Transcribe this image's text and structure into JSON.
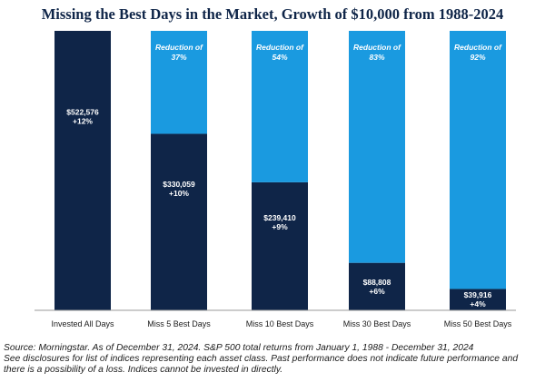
{
  "chart_data": {
    "type": "bar",
    "stacked": true,
    "title": "Missing the Best Days in the Market, Growth of $10,000 from 1988-2024",
    "categories": [
      "Invested All Days",
      "Miss 5 Best Days",
      "Miss 10 Best Days",
      "Miss 30 Best Days",
      "Miss 50 Best Days"
    ],
    "total": 522576,
    "series": [
      {
        "values": [
          522576,
          330059,
          239410,
          88808,
          39916
        ]
      },
      {
        "values": [
          0,
          192517,
          283166,
          433768,
          482660
        ]
      }
    ],
    "value_labels": [
      "$522,576",
      "$330,059",
      "$239,410",
      "$88,808",
      "$39,916"
    ],
    "return_labels": [
      "+12%",
      "+10%",
      "+9%",
      "+6%",
      "+4%"
    ],
    "reduction_prefix": "Reduction of",
    "reduction_labels": [
      "",
      "37%",
      "54%",
      "83%",
      "92%"
    ],
    "ylim": [
      0,
      522576
    ],
    "grid": false,
    "legend": "none",
    "colors": {
      "dark": "#0f2548",
      "light": "#1a9ae0",
      "axis": "#9a9a9a"
    }
  },
  "footnote": [
    "Source: Morningstar. As of December 31, 2024. S&P 500 total returns from January 1, 1988 - December 31, 2024",
    "See disclosures for list of indices representing each asset class. Past performance does not indicate future performance and",
    "there is a possibility of a loss. Indices cannot be invested in directly."
  ]
}
